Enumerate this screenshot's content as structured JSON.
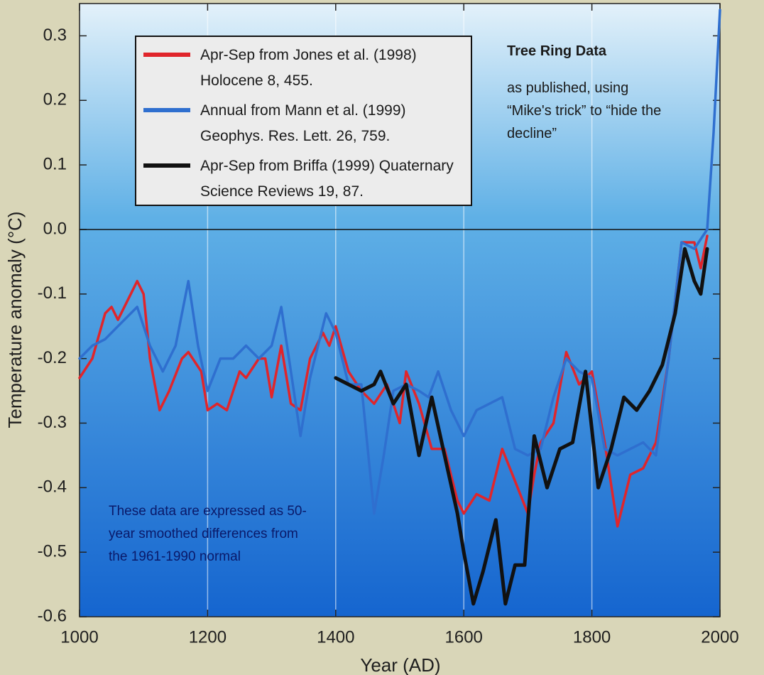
{
  "chart_data": {
    "type": "line",
    "xlabel": "Year (AD)",
    "ylabel": "Temperature anomaly (°C)",
    "xlim": [
      1000,
      2000
    ],
    "ylim": [
      -0.6,
      0.35
    ],
    "xticks": [
      1000,
      1200,
      1400,
      1600,
      1800,
      2000
    ],
    "yticks": [
      0.3,
      0.2,
      0.1,
      {
        "value": 0,
        "label": "0.0"
      },
      -0.1,
      -0.2,
      -0.3,
      -0.4,
      -0.5,
      -0.6
    ],
    "grid": true,
    "zero_line": true,
    "annotations": [
      "Tree Ring Data",
      "as published, using “Mike's trick” to “hide the decline”",
      "These data are expressed as 50-year smoothed differences from the 1961-1990 normal"
    ],
    "series": [
      {
        "name": "Apr-Sep from Jones et al. (1998) Holocene 8, 455.",
        "color": "#e0252b",
        "x": [
          1000,
          1020,
          1040,
          1050,
          1060,
          1080,
          1090,
          1100,
          1110,
          1125,
          1140,
          1160,
          1170,
          1190,
          1200,
          1215,
          1230,
          1250,
          1260,
          1280,
          1290,
          1300,
          1315,
          1330,
          1345,
          1360,
          1380,
          1390,
          1400,
          1420,
          1440,
          1460,
          1480,
          1500,
          1510,
          1530,
          1550,
          1570,
          1590,
          1600,
          1620,
          1640,
          1660,
          1680,
          1700,
          1710,
          1720,
          1740,
          1760,
          1780,
          1790,
          1800,
          1820,
          1840,
          1860,
          1880,
          1900,
          1920,
          1940,
          1960,
          1970,
          1980
        ],
        "values": [
          -0.23,
          -0.2,
          -0.13,
          -0.12,
          -0.14,
          -0.1,
          -0.08,
          -0.1,
          -0.2,
          -0.28,
          -0.25,
          -0.2,
          -0.19,
          -0.22,
          -0.28,
          -0.27,
          -0.28,
          -0.22,
          -0.23,
          -0.2,
          -0.2,
          -0.26,
          -0.18,
          -0.27,
          -0.28,
          -0.2,
          -0.16,
          -0.18,
          -0.15,
          -0.22,
          -0.25,
          -0.27,
          -0.24,
          -0.3,
          -0.22,
          -0.27,
          -0.34,
          -0.34,
          -0.42,
          -0.44,
          -0.41,
          -0.42,
          -0.34,
          -0.39,
          -0.44,
          -0.38,
          -0.33,
          -0.3,
          -0.19,
          -0.24,
          -0.23,
          -0.22,
          -0.33,
          -0.46,
          -0.38,
          -0.37,
          -0.33,
          -0.2,
          -0.02,
          -0.02,
          -0.06,
          -0.01
        ]
      },
      {
        "name": "Annual from Mann et al. (1999) Geophys. Res. Lett. 26, 759.",
        "color": "#2f6fcf",
        "x": [
          1000,
          1020,
          1040,
          1060,
          1090,
          1110,
          1130,
          1150,
          1170,
          1185,
          1200,
          1220,
          1240,
          1260,
          1280,
          1300,
          1315,
          1330,
          1345,
          1360,
          1385,
          1400,
          1420,
          1440,
          1460,
          1475,
          1490,
          1510,
          1530,
          1545,
          1560,
          1580,
          1600,
          1620,
          1640,
          1660,
          1680,
          1700,
          1720,
          1740,
          1760,
          1780,
          1800,
          1820,
          1840,
          1860,
          1880,
          1900,
          1920,
          1940,
          1960,
          1980,
          1990,
          2000
        ],
        "values": [
          -0.2,
          -0.18,
          -0.17,
          -0.15,
          -0.12,
          -0.18,
          -0.22,
          -0.18,
          -0.08,
          -0.18,
          -0.25,
          -0.2,
          -0.2,
          -0.18,
          -0.2,
          -0.18,
          -0.12,
          -0.22,
          -0.32,
          -0.23,
          -0.13,
          -0.16,
          -0.24,
          -0.24,
          -0.44,
          -0.35,
          -0.25,
          -0.24,
          -0.25,
          -0.26,
          -0.22,
          -0.28,
          -0.32,
          -0.28,
          -0.27,
          -0.26,
          -0.34,
          -0.35,
          -0.34,
          -0.26,
          -0.2,
          -0.22,
          -0.23,
          -0.34,
          -0.35,
          -0.34,
          -0.33,
          -0.35,
          -0.2,
          -0.02,
          -0.03,
          0.0,
          0.15,
          0.34
        ]
      },
      {
        "name": "Apr-Sep from Briffa (1999) Quaternary Science Reviews 19, 87.",
        "color": "#111111",
        "x": [
          1400,
          1420,
          1440,
          1460,
          1470,
          1490,
          1510,
          1530,
          1550,
          1570,
          1590,
          1600,
          1615,
          1630,
          1650,
          1665,
          1680,
          1695,
          1710,
          1730,
          1750,
          1770,
          1790,
          1810,
          1830,
          1850,
          1870,
          1890,
          1910,
          1930,
          1945,
          1960,
          1970,
          1980
        ],
        "values": [
          -0.23,
          -0.24,
          -0.25,
          -0.24,
          -0.22,
          -0.27,
          -0.24,
          -0.35,
          -0.26,
          -0.35,
          -0.44,
          -0.5,
          -0.58,
          -0.53,
          -0.45,
          -0.58,
          -0.52,
          -0.52,
          -0.32,
          -0.4,
          -0.34,
          -0.33,
          -0.22,
          -0.4,
          -0.34,
          -0.26,
          -0.28,
          -0.25,
          -0.21,
          -0.13,
          -0.03,
          -0.08,
          -0.1,
          -0.03
        ]
      }
    ]
  }
}
